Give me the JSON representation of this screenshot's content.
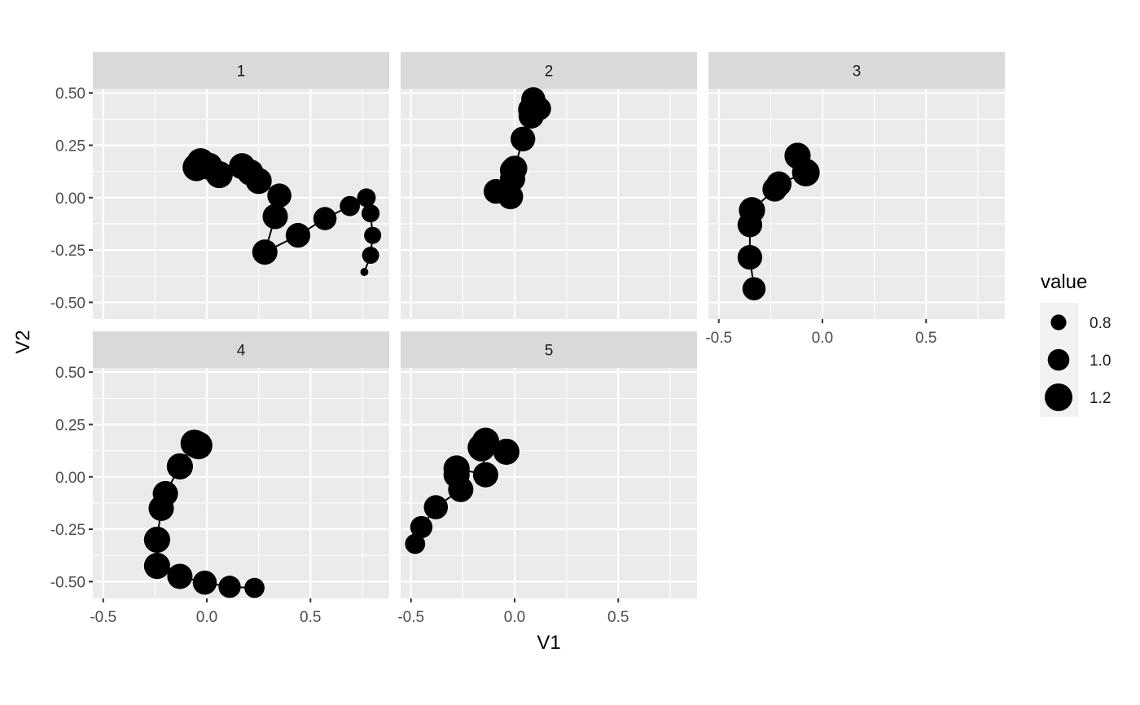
{
  "chart_data": {
    "type": "scatter",
    "facet_by": "panel",
    "xlabel": "V1",
    "ylabel": "V2",
    "xlim": [
      -0.55,
      0.88
    ],
    "ylim": [
      -0.58,
      0.52
    ],
    "x_ticks": [
      -0.5,
      0.0,
      0.5
    ],
    "x_tick_labels": [
      "-0.5",
      "0.0",
      "0.5"
    ],
    "y_ticks": [
      -0.5,
      -0.25,
      0.0,
      0.25,
      0.5
    ],
    "y_tick_labels": [
      "-0.50",
      "-0.25",
      "0.00",
      "0.25",
      "0.50"
    ],
    "grid": true,
    "legend": {
      "title": "value",
      "position": "right",
      "size_values": [
        0.8,
        1.0,
        1.2
      ],
      "labels": [
        "0.8",
        "1.0",
        "1.2"
      ]
    },
    "panels": [
      {
        "label": "1",
        "points": [
          {
            "x": 0.76,
            "y": -0.355,
            "value": 0.55
          },
          {
            "x": 0.79,
            "y": -0.275,
            "value": 0.85
          },
          {
            "x": 0.8,
            "y": -0.18,
            "value": 0.85
          },
          {
            "x": 0.79,
            "y": -0.075,
            "value": 0.88
          },
          {
            "x": 0.77,
            "y": 0.0,
            "value": 0.9
          },
          {
            "x": 0.69,
            "y": -0.04,
            "value": 0.95
          },
          {
            "x": 0.57,
            "y": -0.1,
            "value": 1.05
          },
          {
            "x": 0.44,
            "y": -0.18,
            "value": 1.1
          },
          {
            "x": 0.28,
            "y": -0.26,
            "value": 1.12
          },
          {
            "x": 0.33,
            "y": -0.09,
            "value": 1.12
          },
          {
            "x": 0.35,
            "y": 0.01,
            "value": 1.08
          },
          {
            "x": 0.25,
            "y": 0.08,
            "value": 1.15
          },
          {
            "x": 0.21,
            "y": 0.12,
            "value": 1.15
          },
          {
            "x": 0.17,
            "y": 0.15,
            "value": 1.15
          },
          {
            "x": 0.06,
            "y": 0.11,
            "value": 1.18
          },
          {
            "x": 0.01,
            "y": 0.15,
            "value": 1.18
          },
          {
            "x": -0.03,
            "y": 0.17,
            "value": 1.2
          },
          {
            "x": -0.05,
            "y": 0.145,
            "value": 1.2
          }
        ]
      },
      {
        "label": "2",
        "points": [
          {
            "x": -0.09,
            "y": 0.03,
            "value": 1.1
          },
          {
            "x": -0.02,
            "y": 0.005,
            "value": 1.12
          },
          {
            "x": -0.01,
            "y": 0.09,
            "value": 1.12
          },
          {
            "x": -0.01,
            "y": 0.13,
            "value": 1.12
          },
          {
            "x": 0.0,
            "y": 0.14,
            "value": 1.12
          },
          {
            "x": 0.04,
            "y": 0.28,
            "value": 1.1
          },
          {
            "x": 0.08,
            "y": 0.39,
            "value": 1.12
          },
          {
            "x": 0.08,
            "y": 0.42,
            "value": 1.15
          },
          {
            "x": 0.12,
            "y": 0.425,
            "value": 1.05
          },
          {
            "x": 0.09,
            "y": 0.47,
            "value": 1.08
          }
        ]
      },
      {
        "label": "3",
        "points": [
          {
            "x": -0.33,
            "y": -0.435,
            "value": 1.05
          },
          {
            "x": -0.35,
            "y": -0.285,
            "value": 1.1
          },
          {
            "x": -0.35,
            "y": -0.13,
            "value": 1.1
          },
          {
            "x": -0.34,
            "y": -0.06,
            "value": 1.15
          },
          {
            "x": -0.23,
            "y": 0.04,
            "value": 1.1
          },
          {
            "x": -0.21,
            "y": 0.065,
            "value": 1.12
          },
          {
            "x": -0.08,
            "y": 0.12,
            "value": 1.2
          },
          {
            "x": -0.12,
            "y": 0.2,
            "value": 1.15
          }
        ]
      },
      {
        "label": "4",
        "points": [
          {
            "x": 0.23,
            "y": -0.53,
            "value": 0.95
          },
          {
            "x": 0.11,
            "y": -0.525,
            "value": 1.02
          },
          {
            "x": -0.01,
            "y": -0.505,
            "value": 1.08
          },
          {
            "x": -0.13,
            "y": -0.475,
            "value": 1.12
          },
          {
            "x": -0.24,
            "y": -0.425,
            "value": 1.15
          },
          {
            "x": -0.24,
            "y": -0.3,
            "value": 1.15
          },
          {
            "x": -0.22,
            "y": -0.15,
            "value": 1.12
          },
          {
            "x": -0.2,
            "y": -0.08,
            "value": 1.12
          },
          {
            "x": -0.13,
            "y": 0.05,
            "value": 1.15
          },
          {
            "x": -0.06,
            "y": 0.16,
            "value": 1.2
          },
          {
            "x": -0.04,
            "y": 0.15,
            "value": 1.2
          }
        ]
      },
      {
        "label": "5",
        "points": [
          {
            "x": -0.48,
            "y": -0.32,
            "value": 0.95
          },
          {
            "x": -0.45,
            "y": -0.24,
            "value": 1.02
          },
          {
            "x": -0.38,
            "y": -0.145,
            "value": 1.08
          },
          {
            "x": -0.26,
            "y": -0.06,
            "value": 1.12
          },
          {
            "x": -0.28,
            "y": 0.01,
            "value": 1.15
          },
          {
            "x": -0.28,
            "y": 0.04,
            "value": 1.15
          },
          {
            "x": -0.14,
            "y": 0.01,
            "value": 1.12
          },
          {
            "x": -0.16,
            "y": 0.14,
            "value": 1.2
          },
          {
            "x": -0.14,
            "y": 0.17,
            "value": 1.18
          },
          {
            "x": -0.04,
            "y": 0.12,
            "value": 1.15
          }
        ]
      }
    ]
  }
}
